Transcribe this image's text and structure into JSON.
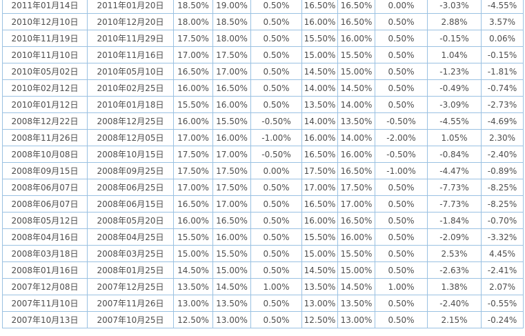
{
  "palette": {
    "positive": "#ff0000",
    "negative": "#009900",
    "plain_text": "#4d4d4d",
    "border": "#9ac1e2",
    "background": "#ffffff"
  },
  "table": {
    "columns": [
      {
        "key": "col1-announce-date",
        "style": "date"
      },
      {
        "key": "col2-effective-date",
        "style": "date"
      },
      {
        "key": "col3-rate-before",
        "style": "plain"
      },
      {
        "key": "col4-rate-after",
        "style": "plain"
      },
      {
        "key": "col5-rate-change",
        "style": "signed"
      },
      {
        "key": "col6-rate-before",
        "style": "plain"
      },
      {
        "key": "col7-rate-after",
        "style": "plain"
      },
      {
        "key": "col8-rate-change",
        "style": "signed"
      },
      {
        "key": "col9-index-change",
        "style": "signed"
      },
      {
        "key": "col10-index-change",
        "style": "signed"
      }
    ],
    "rows": [
      [
        "2011年01月14日",
        "2011年01月20日",
        "18.50%",
        "19.00%",
        "0.50%",
        "16.50%",
        "16.50%",
        "0.00%",
        "-3.03%",
        "-4.55%"
      ],
      [
        "2010年12月10日",
        "2010年12月20日",
        "18.00%",
        "18.50%",
        "0.50%",
        "16.00%",
        "16.50%",
        "0.50%",
        "2.88%",
        "3.57%"
      ],
      [
        "2010年11月19日",
        "2010年11月29日",
        "17.50%",
        "18.00%",
        "0.50%",
        "15.50%",
        "16.00%",
        "0.50%",
        "-0.15%",
        "0.06%"
      ],
      [
        "2010年11月10日",
        "2010年11月16日",
        "17.00%",
        "17.50%",
        "0.50%",
        "15.00%",
        "15.50%",
        "0.50%",
        "1.04%",
        "-0.15%"
      ],
      [
        "2010年05月02日",
        "2010年05月10日",
        "16.50%",
        "17.00%",
        "0.50%",
        "14.50%",
        "15.00%",
        "0.50%",
        "-1.23%",
        "-1.81%"
      ],
      [
        "2010年02月12日",
        "2010年02月25日",
        "16.00%",
        "16.50%",
        "0.50%",
        "14.00%",
        "14.50%",
        "0.50%",
        "-0.49%",
        "-0.74%"
      ],
      [
        "2010年01月12日",
        "2010年01月18日",
        "15.50%",
        "16.00%",
        "0.50%",
        "13.50%",
        "14.00%",
        "0.50%",
        "-3.09%",
        "-2.73%"
      ],
      [
        "2008年12月22日",
        "2008年12月25日",
        "16.00%",
        "15.50%",
        "-0.50%",
        "14.00%",
        "13.50%",
        "-0.50%",
        "-4.55%",
        "-4.69%"
      ],
      [
        "2008年11月26日",
        "2008年12月05日",
        "17.00%",
        "16.00%",
        "-1.00%",
        "16.00%",
        "14.00%",
        "-2.00%",
        "1.05%",
        "2.30%"
      ],
      [
        "2008年10月08日",
        "2008年10月15日",
        "17.50%",
        "17.00%",
        "-0.50%",
        "16.50%",
        "16.00%",
        "-0.50%",
        "-0.84%",
        "-2.40%"
      ],
      [
        "2008年09月15日",
        "2008年09月25日",
        "17.50%",
        "17.50%",
        "0.00%",
        "17.50%",
        "16.50%",
        "-1.00%",
        "-4.47%",
        "-0.89%"
      ],
      [
        "2008年06月07日",
        "2008年06月25日",
        "17.00%",
        "17.50%",
        "0.50%",
        "17.00%",
        "17.50%",
        "0.50%",
        "-7.73%",
        "-8.25%"
      ],
      [
        "2008年06月07日",
        "2008年06月15日",
        "16.50%",
        "17.00%",
        "0.50%",
        "16.50%",
        "17.00%",
        "0.50%",
        "-7.73%",
        "-8.25%"
      ],
      [
        "2008年05月12日",
        "2008年05月20日",
        "16.00%",
        "16.50%",
        "0.50%",
        "16.00%",
        "16.50%",
        "0.50%",
        "-1.84%",
        "-0.70%"
      ],
      [
        "2008年04月16日",
        "2008年04月25日",
        "15.50%",
        "16.00%",
        "0.50%",
        "15.50%",
        "16.00%",
        "0.50%",
        "-2.09%",
        "-3.32%"
      ],
      [
        "2008年03月18日",
        "2008年03月25日",
        "15.00%",
        "15.50%",
        "0.50%",
        "15.00%",
        "15.50%",
        "0.50%",
        "2.53%",
        "4.45%"
      ],
      [
        "2008年01月16日",
        "2008年01月25日",
        "14.50%",
        "15.00%",
        "0.50%",
        "14.50%",
        "15.00%",
        "0.50%",
        "-2.63%",
        "-2.41%"
      ],
      [
        "2007年12月08日",
        "2007年12月25日",
        "13.50%",
        "14.50%",
        "1.00%",
        "13.50%",
        "14.50%",
        "1.00%",
        "1.38%",
        "2.07%"
      ],
      [
        "2007年11月10日",
        "2007年11月26日",
        "13.00%",
        "13.50%",
        "0.50%",
        "13.00%",
        "13.50%",
        "0.50%",
        "-2.40%",
        "-0.55%"
      ],
      [
        "2007年10月13日",
        "2007年10月25日",
        "12.50%",
        "13.00%",
        "0.50%",
        "12.50%",
        "13.00%",
        "0.50%",
        "2.15%",
        "-0.24%"
      ]
    ]
  }
}
